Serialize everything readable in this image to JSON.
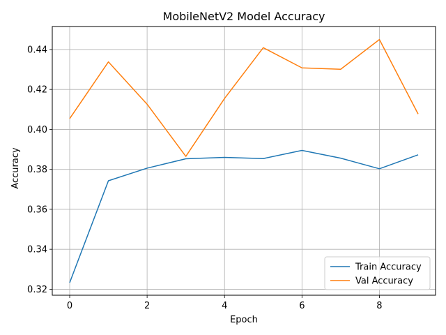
{
  "chart_data": {
    "type": "line",
    "title": "MobileNetV2 Model Accuracy",
    "xlabel": "Epoch",
    "ylabel": "Accuracy",
    "xlim": [
      -0.45,
      9.45
    ],
    "ylim": [
      0.317,
      0.4515
    ],
    "xticks": [
      0,
      2,
      4,
      6,
      8
    ],
    "yticks": [
      0.32,
      0.34,
      0.36,
      0.38,
      0.4,
      0.42,
      0.44
    ],
    "ytick_labels": [
      "0.32",
      "0.34",
      "0.36",
      "0.38",
      "0.40",
      "0.42",
      "0.44"
    ],
    "grid": true,
    "legend_position": "lower right",
    "x": [
      0,
      1,
      2,
      3,
      4,
      5,
      6,
      7,
      8,
      9
    ],
    "series": [
      {
        "name": "Train Accuracy",
        "color": "#1f77b4",
        "values": [
          0.3233,
          0.3743,
          0.3806,
          0.3853,
          0.386,
          0.3854,
          0.3895,
          0.3856,
          0.3803,
          0.3873
        ]
      },
      {
        "name": "Val Accuracy",
        "color": "#ff7f0e",
        "values": [
          0.4054,
          0.4338,
          0.4126,
          0.3865,
          0.4155,
          0.4409,
          0.4308,
          0.4301,
          0.445,
          0.4077
        ]
      }
    ]
  }
}
